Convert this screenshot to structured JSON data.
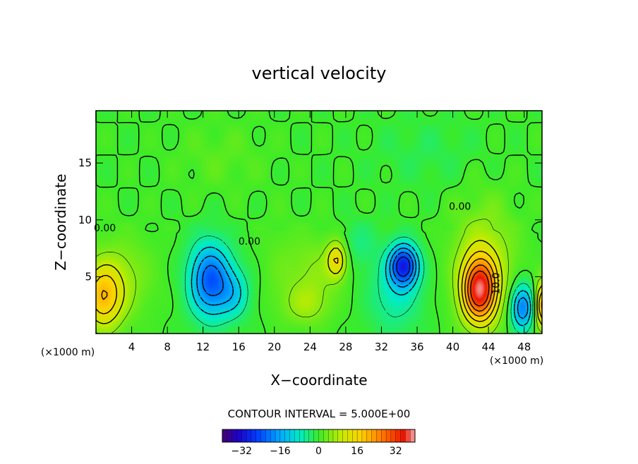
{
  "chart_data": {
    "type": "heatmap",
    "title": "vertical velocity",
    "xlabel": "X−coordinate",
    "ylabel": "Z−coordinate",
    "x_unit": "(×1000 m)",
    "y_unit": "(×1000 m)",
    "xlim": [
      0,
      50
    ],
    "ylim": [
      0,
      19.6
    ],
    "x_ticks": [
      4,
      8,
      12,
      16,
      20,
      24,
      28,
      32,
      36,
      40,
      44,
      48
    ],
    "x_tick_labels": [
      "4",
      "8",
      "12",
      "16",
      "20",
      "24",
      "28",
      "32",
      "36",
      "40",
      "44",
      "48"
    ],
    "y_ticks": [
      5,
      10,
      15
    ],
    "y_tick_labels": [
      "5",
      "10",
      "15"
    ],
    "contour_interval_text": "CONTOUR INTERVAL = 5.000E+00",
    "contour_labels": [
      {
        "x": 1.0,
        "z": 9.0,
        "text": "0.00"
      },
      {
        "x": 17.2,
        "z": 7.8,
        "text": "0.00"
      },
      {
        "x": 40.8,
        "z": 10.9,
        "text": "0.00"
      },
      {
        "x": 45.2,
        "z": 4.4,
        "text": "10.0"
      }
    ],
    "colorbar": {
      "range": [
        -40,
        40
      ],
      "ticks": [
        -32,
        -16,
        0,
        16,
        32
      ],
      "tick_labels": [
        "−32",
        "−16",
        "0",
        "16",
        "32"
      ]
    },
    "features": [
      {
        "x": 0.8,
        "z": 3.2,
        "sx": 2.2,
        "sz": 2.8,
        "amp": 18
      },
      {
        "x": 3.0,
        "z": 5.0,
        "sx": 3.5,
        "sz": 3.5,
        "amp": 5
      },
      {
        "x": 12.8,
        "z": 4.7,
        "sx": 2.3,
        "sz": 3.2,
        "amp": -23
      },
      {
        "x": 15.5,
        "z": 3.5,
        "sx": 1.8,
        "sz": 2.2,
        "amp": -9
      },
      {
        "x": 27.0,
        "z": 6.5,
        "sx": 1.1,
        "sz": 1.6,
        "amp": 14
      },
      {
        "x": 24.5,
        "z": 5.5,
        "sx": 3.0,
        "sz": 3.0,
        "amp": 5
      },
      {
        "x": 23.5,
        "z": 2.5,
        "sx": 2.5,
        "sz": 1.8,
        "amp": 6
      },
      {
        "x": 34.5,
        "z": 6.0,
        "sx": 1.6,
        "sz": 1.8,
        "amp": -27
      },
      {
        "x": 33.5,
        "z": 3.5,
        "sx": 3.0,
        "sz": 3.5,
        "amp": -7
      },
      {
        "x": 43.0,
        "z": 3.8,
        "sx": 1.9,
        "sz": 2.8,
        "amp": 33
      },
      {
        "x": 43.5,
        "z": 6.5,
        "sx": 3.5,
        "sz": 5.0,
        "amp": 8
      },
      {
        "x": 47.8,
        "z": 2.3,
        "sx": 1.3,
        "sz": 2.0,
        "amp": -20
      },
      {
        "x": 50.0,
        "z": 2.5,
        "sx": 0.8,
        "sz": 2.0,
        "amp": 22
      },
      {
        "x": 29.5,
        "z": 8.0,
        "sx": 2.0,
        "sz": 2.0,
        "amp": -4
      },
      {
        "x": 20.5,
        "z": 6.0,
        "sx": 2.0,
        "sz": 4.0,
        "amp": 2
      },
      {
        "x": 37.0,
        "z": 16.0,
        "sx": 6.0,
        "sz": 3.0,
        "amp": -2
      },
      {
        "x": 14.0,
        "z": 15.5,
        "sx": 5.0,
        "sz": 3.0,
        "amp": 2
      }
    ]
  }
}
